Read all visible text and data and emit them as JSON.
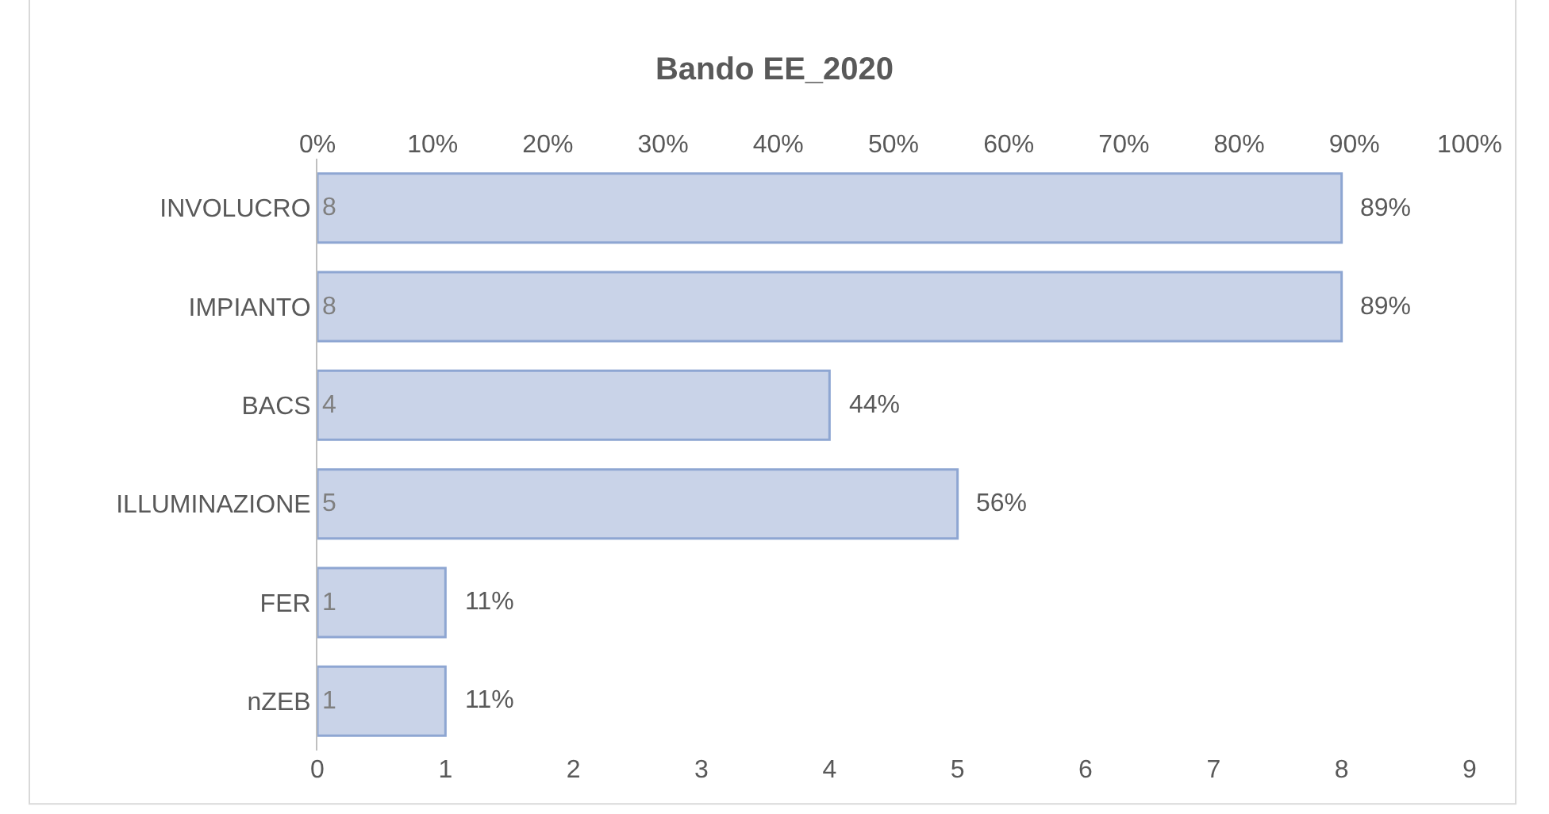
{
  "chart_data": {
    "type": "bar",
    "orientation": "horizontal",
    "title": "Bando EE_2020",
    "categories": [
      "INVOLUCRO",
      "IMPIANTO",
      "BACS",
      "ILLUMINAZIONE",
      "FER",
      "nZEB"
    ],
    "values": [
      8,
      8,
      4,
      5,
      1,
      1
    ],
    "color": "#c9d3e8",
    "xlim": [
      0,
      9
    ],
    "xticks": [
      0,
      1,
      2,
      3,
      4,
      5,
      6,
      7,
      8,
      9
    ],
    "x2lim": [
      0,
      100
    ],
    "x2ticks": [
      {
        "value": 0,
        "label": "0%"
      },
      {
        "value": 10,
        "label": "10%"
      },
      {
        "value": 20,
        "label": "20%"
      },
      {
        "value": 30,
        "label": "30%"
      },
      {
        "value": 40,
        "label": "40%"
      },
      {
        "value": 50,
        "label": "50%"
      },
      {
        "value": 60,
        "label": "60%"
      },
      {
        "value": 70,
        "label": "70%"
      },
      {
        "value": 80,
        "label": "80%"
      },
      {
        "value": 90,
        "label": "90%"
      },
      {
        "value": 100,
        "label": "100%"
      }
    ],
    "data_labels": true,
    "annotations": [
      {
        "text": "89%",
        "x": 8,
        "y": "INVOLUCRO"
      },
      {
        "text": "89%",
        "x": 8,
        "y": "IMPIANTO"
      },
      {
        "text": "44%",
        "x": 4,
        "y": "BACS"
      },
      {
        "text": "56%",
        "x": 5,
        "y": "ILLUMINAZIONE"
      },
      {
        "text": "11%",
        "x": 1,
        "y": "FER"
      },
      {
        "text": "11%",
        "x": 1,
        "y": "nZEB"
      }
    ],
    "grid": false
  }
}
